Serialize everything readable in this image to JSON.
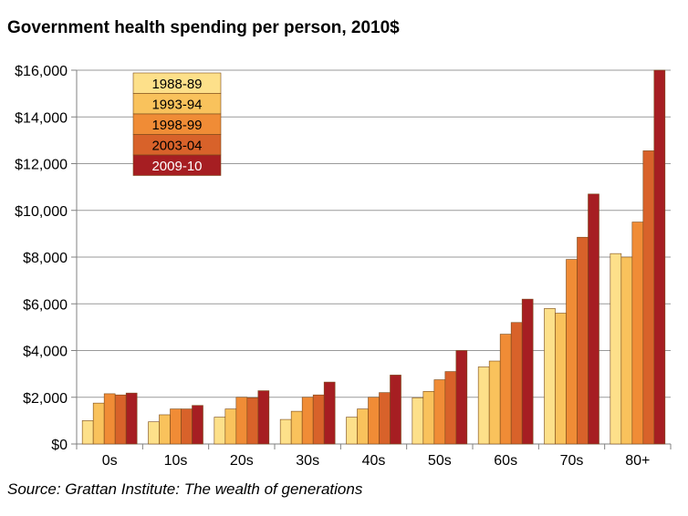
{
  "chart_data": {
    "type": "bar",
    "title": "Government health spending per person, 2010$",
    "source": "Source: Grattan Institute: The wealth of generations",
    "xlabel": "",
    "ylabel": "",
    "categories": [
      "0s",
      "10s",
      "20s",
      "30s",
      "40s",
      "50s",
      "60s",
      "70s",
      "80+"
    ],
    "ylim": [
      0,
      16000
    ],
    "yticks": [
      0,
      2000,
      4000,
      6000,
      8000,
      10000,
      12000,
      14000,
      16000
    ],
    "ytick_labels": [
      "$0",
      "$2,000",
      "$4,000",
      "$6,000",
      "$8,000",
      "$10,000",
      "$12,000",
      "$14,000",
      "$16,000"
    ],
    "grid": true,
    "legend_position": "top-left",
    "series": [
      {
        "name": "1988-89",
        "color": "#fde08a",
        "values": [
          1000,
          950,
          1150,
          1050,
          1150,
          1980,
          3300,
          5800,
          8150
        ]
      },
      {
        "name": "1993-94",
        "color": "#f9c25c",
        "values": [
          1750,
          1250,
          1500,
          1400,
          1500,
          2250,
          3550,
          5600,
          8000
        ]
      },
      {
        "name": "1998-99",
        "color": "#f08c36",
        "values": [
          2150,
          1500,
          2000,
          2000,
          2000,
          2750,
          4700,
          7900,
          9500
        ]
      },
      {
        "name": "2003-04",
        "color": "#d8622a",
        "values": [
          2100,
          1500,
          1980,
          2100,
          2200,
          3100,
          5200,
          8850,
          12550
        ]
      },
      {
        "name": "2009-10",
        "color": "#a61e22",
        "values": [
          2180,
          1650,
          2280,
          2650,
          2950,
          4000,
          6200,
          10700,
          16000
        ]
      }
    ]
  }
}
